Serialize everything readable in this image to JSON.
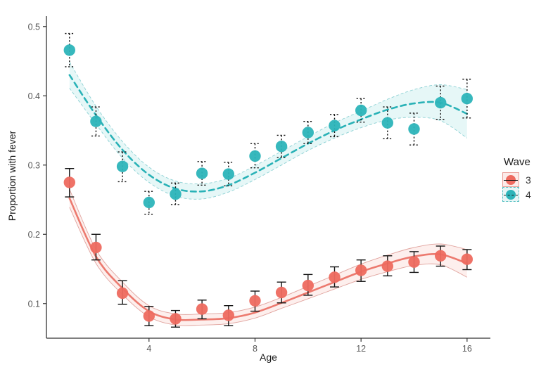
{
  "chart_data": {
    "type": "scatter",
    "title": "",
    "xlabel": "Age",
    "ylabel": "Proportion with fever",
    "x_ticks": [
      "4",
      "8",
      "12",
      "16"
    ],
    "x_tick_values": [
      4,
      8,
      12,
      16
    ],
    "y_ticks": [
      "0.1",
      "0.2",
      "0.3",
      "0.4",
      "0.5"
    ],
    "y_tick_values": [
      0.1,
      0.2,
      0.3,
      0.4,
      0.5
    ],
    "xlim": [
      0.13,
      16.88
    ],
    "ylim": [
      0.05,
      0.515
    ],
    "grid": false,
    "legend": {
      "title": "Wave",
      "position": "right"
    },
    "x": [
      1,
      2,
      3,
      4,
      5,
      6,
      7,
      8,
      9,
      10,
      11,
      12,
      13,
      14,
      15,
      16
    ],
    "series": [
      {
        "name": "3",
        "label": "3",
        "line_type": "solid",
        "point_color": "#ee6a5f",
        "line_color": "#ec7a6f",
        "band_edge_color": "rgba(200,95,85,0.55)",
        "band_fill": "rgba(240,128,118,0.13)",
        "errorbar_color": "#141414",
        "errorbar_style": "solid",
        "values": [
          0.275,
          0.181,
          0.115,
          0.082,
          0.078,
          0.092,
          0.083,
          0.104,
          0.116,
          0.126,
          0.138,
          0.148,
          0.154,
          0.16,
          0.169,
          0.164
        ],
        "ci_low": [
          0.254,
          0.163,
          0.099,
          0.068,
          0.066,
          0.078,
          0.068,
          0.089,
          0.101,
          0.112,
          0.124,
          0.132,
          0.14,
          0.145,
          0.154,
          0.149
        ],
        "ci_high": [
          0.295,
          0.2,
          0.133,
          0.096,
          0.09,
          0.105,
          0.097,
          0.118,
          0.131,
          0.142,
          0.153,
          0.163,
          0.169,
          0.175,
          0.183,
          0.178
        ],
        "fit": [
          0.252,
          0.168,
          0.122,
          0.089,
          0.077,
          0.077,
          0.079,
          0.087,
          0.101,
          0.116,
          0.131,
          0.146,
          0.158,
          0.168,
          0.171,
          0.158
        ],
        "fit_low": [
          0.239,
          0.158,
          0.113,
          0.081,
          0.069,
          0.069,
          0.071,
          0.079,
          0.093,
          0.107,
          0.121,
          0.135,
          0.146,
          0.155,
          0.156,
          0.138
        ],
        "fit_high": [
          0.265,
          0.178,
          0.131,
          0.097,
          0.085,
          0.085,
          0.087,
          0.095,
          0.109,
          0.125,
          0.141,
          0.157,
          0.17,
          0.181,
          0.186,
          0.178
        ]
      },
      {
        "name": "4",
        "label": "4",
        "line_type": "dashed",
        "point_color": "#2cb4b9",
        "line_color": "#2ab2b7",
        "band_edge_color": "rgba(70,180,185,0.6)",
        "band_fill": "rgba(100,205,208,0.16)",
        "errorbar_color": "#141414",
        "errorbar_style": "dashed",
        "values": [
          0.466,
          0.363,
          0.298,
          0.246,
          0.258,
          0.288,
          0.287,
          0.313,
          0.327,
          0.347,
          0.357,
          0.379,
          0.361,
          0.352,
          0.39,
          0.396
        ],
        "ci_low": [
          0.442,
          0.342,
          0.276,
          0.229,
          0.243,
          0.271,
          0.27,
          0.296,
          0.311,
          0.331,
          0.341,
          0.362,
          0.338,
          0.329,
          0.366,
          0.368
        ],
        "ci_high": [
          0.49,
          0.384,
          0.319,
          0.262,
          0.274,
          0.305,
          0.304,
          0.331,
          0.343,
          0.363,
          0.373,
          0.396,
          0.384,
          0.375,
          0.414,
          0.424
        ],
        "fit": [
          0.43,
          0.372,
          0.322,
          0.286,
          0.266,
          0.262,
          0.271,
          0.289,
          0.31,
          0.331,
          0.35,
          0.366,
          0.38,
          0.389,
          0.39,
          0.374
        ],
        "fit_low": [
          0.411,
          0.359,
          0.31,
          0.275,
          0.255,
          0.251,
          0.261,
          0.279,
          0.3,
          0.321,
          0.339,
          0.354,
          0.365,
          0.369,
          0.364,
          0.339
        ],
        "fit_high": [
          0.449,
          0.385,
          0.334,
          0.297,
          0.277,
          0.273,
          0.281,
          0.299,
          0.32,
          0.341,
          0.361,
          0.378,
          0.395,
          0.409,
          0.416,
          0.409
        ]
      }
    ]
  }
}
